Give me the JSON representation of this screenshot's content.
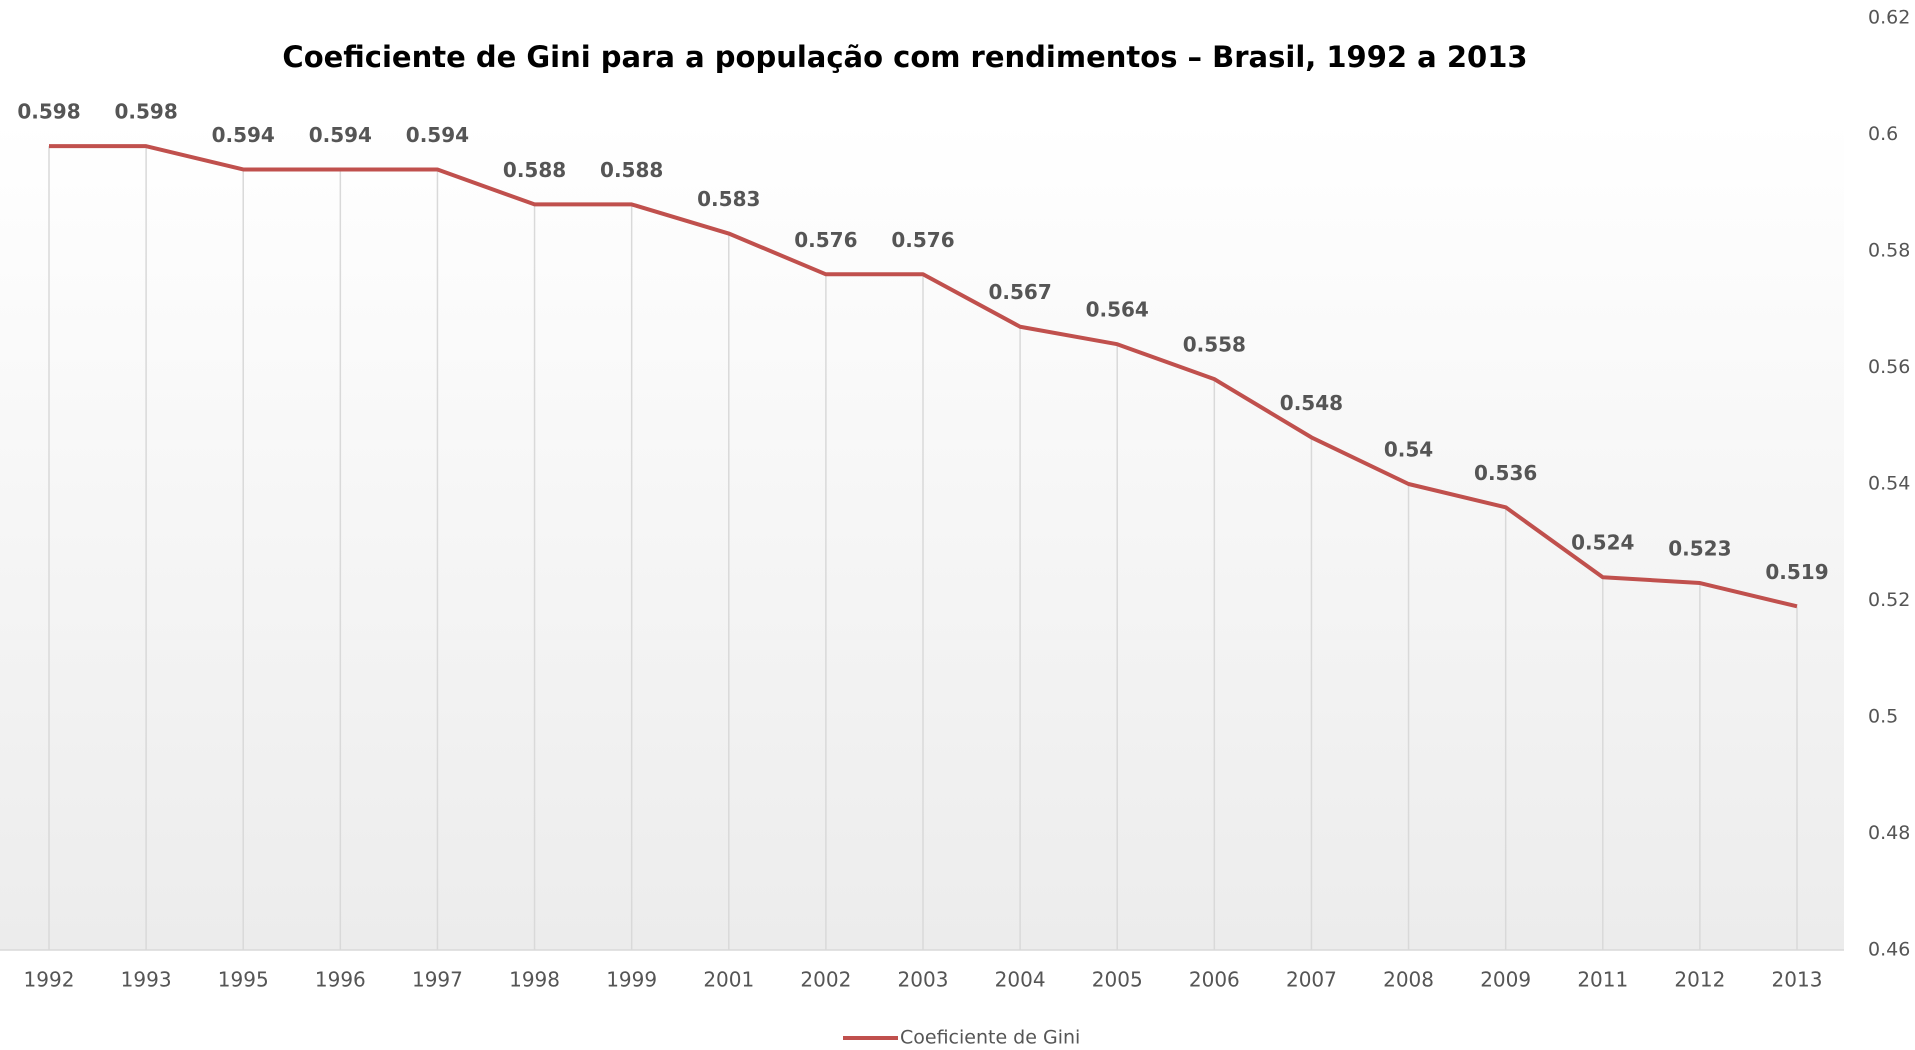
{
  "chart_data": {
    "type": "line",
    "title": "Coeficiente de Gini para a população com rendimentos – Brasil, 1992 a 2013",
    "categories": [
      "1992",
      "1993",
      "1995",
      "1996",
      "1997",
      "1998",
      "1999",
      "2001",
      "2002",
      "2003",
      "2004",
      "2005",
      "2006",
      "2007",
      "2008",
      "2009",
      "2011",
      "2012",
      "2013"
    ],
    "series": [
      {
        "name": "Coeficiente de Gini",
        "color": "#c0504d",
        "values": [
          0.598,
          0.598,
          0.594,
          0.594,
          0.594,
          0.588,
          0.588,
          0.583,
          0.576,
          0.576,
          0.567,
          0.564,
          0.558,
          0.548,
          0.54,
          0.536,
          0.524,
          0.523,
          0.519
        ]
      }
    ],
    "ylim": [
      0.46,
      0.62
    ],
    "yticks": [
      0.46,
      0.48,
      0.5,
      0.52,
      0.54,
      0.56,
      0.58,
      0.6,
      0.62
    ],
    "y_axis_side": "right",
    "drop_lines": true,
    "data_labels": true,
    "legend": "bottom"
  }
}
